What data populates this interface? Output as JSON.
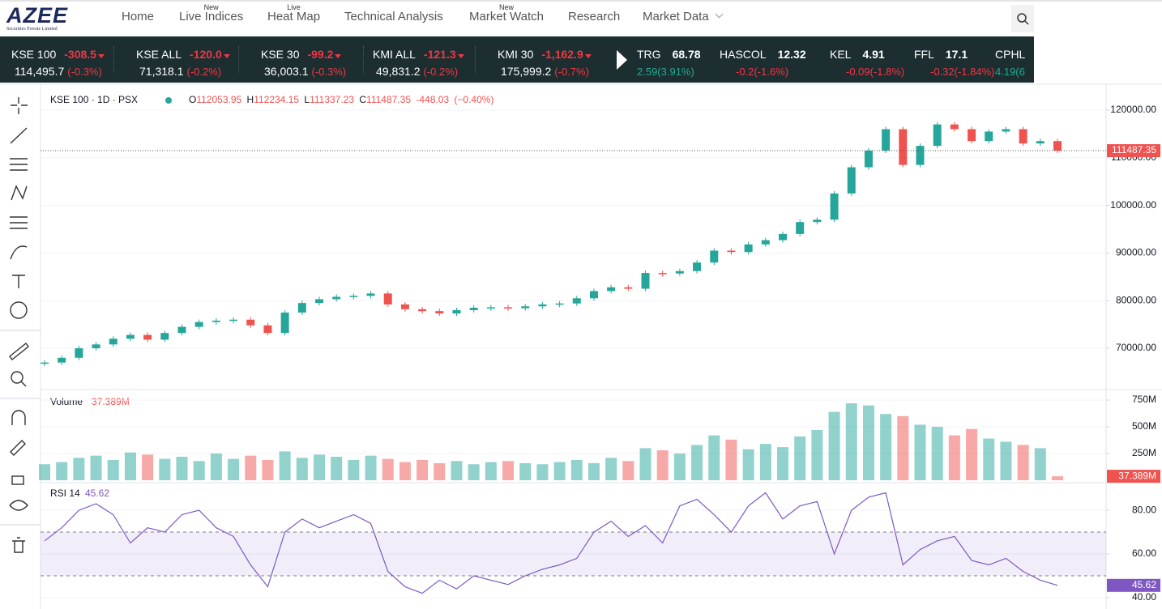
{
  "logo": {
    "name": "AZEE",
    "tagline": "Securities Private Limited"
  },
  "nav": [
    {
      "label": "Home"
    },
    {
      "label": "Live Indices",
      "badge": "New"
    },
    {
      "label": "Heat Map",
      "badge": "Live"
    },
    {
      "label": "Technical Analysis"
    },
    {
      "label": "Market Watch",
      "badge": "New"
    },
    {
      "label": "Research"
    },
    {
      "label": "Market Data"
    }
  ],
  "indices": [
    {
      "name": "KSE 100",
      "change": "-308.5",
      "value": "114,495.7",
      "pct": "(-0.3%)"
    },
    {
      "name": "KSE ALL",
      "change": "-120.0",
      "value": "71,318.1",
      "pct": "(-0.2%)"
    },
    {
      "name": "KSE 30",
      "change": "-99.2",
      "value": "36,003.1",
      "pct": "(-0.3%)"
    },
    {
      "name": "KMI ALL",
      "change": "-121.3",
      "value": "49,831.2",
      "pct": "(-0.2%)"
    },
    {
      "name": "KMI 30",
      "change": "-1,162.9",
      "value": "175,999.2",
      "pct": "(-0.7%)"
    }
  ],
  "stocks": [
    {
      "symbol": "TRG",
      "price": "68.78",
      "change": "2.59(3.91%)"
    },
    {
      "symbol": "HASCOL",
      "price": "12.32",
      "change": "-0.2(-1.6%)"
    },
    {
      "symbol": "KEL",
      "price": "4.91",
      "change": "-0.09(-1.8%)"
    },
    {
      "symbol": "FFL",
      "price": "17.1",
      "change": "-0.32(-1.84%)"
    },
    {
      "symbol": "CPHL",
      "price": "",
      "change": "4.19(6"
    }
  ],
  "chart_data": [
    {
      "type": "candlestick",
      "title": "KSE 100 · 1D · PSX",
      "ohlc_labels": [
        "O",
        "H",
        "L",
        "C"
      ],
      "open": "112053.95",
      "high": "112234.15",
      "low": "111337.23",
      "change": "-448.03",
      "change_pct": "(−0.40%)",
      "values": [
        67000,
        68000,
        70000,
        70800,
        72000,
        72800,
        71800,
        73200,
        74500,
        75500,
        75800,
        76000,
        74800,
        73200,
        77500,
        79500,
        80300,
        80800,
        81000,
        81500,
        79200,
        78200,
        77800,
        77300,
        78000,
        78500,
        78600,
        78400,
        78800,
        79200,
        79400,
        80500,
        82000,
        82800,
        82500,
        85800,
        85700,
        86200,
        88000,
        90500,
        90200,
        91800,
        92700,
        94000,
        96500,
        97000,
        102500,
        108000,
        111500,
        116000,
        108500,
        112500,
        117000,
        116000,
        113500,
        115500,
        116000,
        113000,
        113500,
        111487.35
      ],
      "colors": {
        "up": "#26a69a",
        "down": "#ef5350"
      },
      "ylim": [
        61500,
        124420
      ],
      "yticks": [
        {
          "value": 70000,
          "label": "70000.00"
        },
        {
          "value": 80000,
          "label": "80000.00"
        },
        {
          "value": 90000,
          "label": "90000.00"
        },
        {
          "value": 100000,
          "label": "100000.00"
        },
        {
          "value": 110000,
          "label": "110000.00"
        },
        {
          "value": 120000,
          "label": "120000.00"
        }
      ],
      "grid": true
    },
    {
      "type": "bar",
      "title": "Volume",
      "value_label": "37.389M",
      "values": [
        150,
        170,
        210,
        230,
        190,
        260,
        240,
        200,
        220,
        180,
        250,
        200,
        230,
        190,
        270,
        210,
        240,
        220,
        190,
        230,
        200,
        170,
        190,
        160,
        180,
        150,
        170,
        180,
        160,
        150,
        170,
        190,
        160,
        210,
        180,
        300,
        280,
        250,
        330,
        420,
        380,
        290,
        340,
        310,
        410,
        470,
        640,
        720,
        700,
        620,
        600,
        520,
        500,
        420,
        480,
        390,
        360,
        330,
        300,
        37.389
      ],
      "ylim": [
        -15,
        826
      ],
      "yticks": [
        {
          "value": 250,
          "label": "250M"
        },
        {
          "value": 500,
          "label": "500M"
        },
        {
          "value": 750,
          "label": "750M"
        }
      ],
      "grid": true
    },
    {
      "type": "line",
      "title": "RSI 14",
      "color": "#7e57c2",
      "values": [
        66,
        72,
        80,
        83,
        78,
        65,
        72,
        70,
        78,
        80,
        72,
        68,
        55,
        45,
        70,
        76,
        72,
        75,
        78,
        74,
        52,
        45,
        42,
        48,
        44,
        50,
        48,
        46,
        50,
        53,
        55,
        58,
        70,
        75,
        68,
        73,
        65,
        82,
        85,
        78,
        70,
        82,
        88,
        76,
        82,
        84,
        60,
        80,
        86,
        88,
        55,
        62,
        66,
        68,
        57,
        55,
        58,
        52,
        48,
        45.62
      ],
      "ylim": [
        38.5,
        91.9
      ],
      "yticks": [
        {
          "value": 40,
          "label": "40.00"
        },
        {
          "value": 60,
          "label": "60.00"
        },
        {
          "value": 80,
          "label": "80.00"
        }
      ],
      "bands": [
        50,
        70
      ],
      "grid": true
    }
  ]
}
